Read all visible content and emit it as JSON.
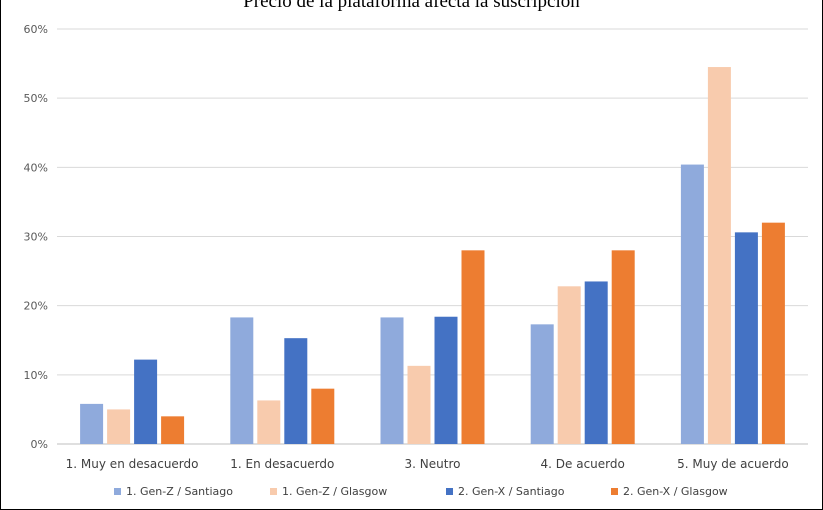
{
  "chart_data": {
    "type": "bar",
    "title": "Precio de la plataforma afecta la suscripción",
    "categories": [
      "1. Muy en desacuerdo",
      "1. En desacuerdo",
      "3. Neutro",
      "4. De acuerdo",
      "5. Muy de acuerdo"
    ],
    "series": [
      {
        "name": "1. Gen-Z / Santiago",
        "color": "#8FAADC",
        "values": [
          5.8,
          18.3,
          18.3,
          17.3,
          40.4
        ]
      },
      {
        "name": "1. Gen-Z / Glasgow",
        "color": "#F8CBAD",
        "values": [
          5.0,
          6.3,
          11.3,
          22.8,
          54.5
        ]
      },
      {
        "name": "2. Gen-X / Santiago",
        "color": "#4472C4",
        "values": [
          12.2,
          15.3,
          18.4,
          23.5,
          30.6
        ]
      },
      {
        "name": "2. Gen-X / Glasgow",
        "color": "#ED7D31",
        "values": [
          4.0,
          8.0,
          28.0,
          28.0,
          32.0
        ]
      }
    ],
    "ylim": [
      0,
      60
    ],
    "yticks": [
      "0%",
      "10%",
      "20%",
      "30%",
      "40%",
      "50%",
      "60%"
    ],
    "grid": true,
    "legend": "bottom"
  }
}
